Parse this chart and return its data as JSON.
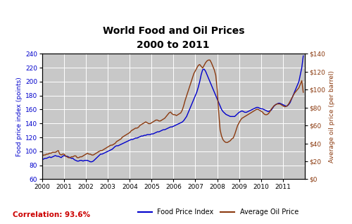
{
  "title_line1": "World Food and Oil Prices",
  "title_line2": "2000 to 2011",
  "ylabel_left": "Food price index (points)",
  "ylabel_right": "Average oil price (per barrel)",
  "ylim_left": [
    60,
    240
  ],
  "ylim_right": [
    0,
    140
  ],
  "yticks_left": [
    60,
    80,
    100,
    120,
    140,
    160,
    180,
    200,
    220,
    240
  ],
  "yticks_right": [
    0,
    20,
    40,
    60,
    80,
    100,
    120,
    140
  ],
  "ytick_right_labels": [
    "$0",
    "$20",
    "$40",
    "$60",
    "$80",
    "$100",
    "$120",
    "$140"
  ],
  "background_color": "#c8c8c8",
  "correlation_text": "Correlation: 93.6%",
  "correlation_color": "#cc0000",
  "food_color": "#0000cc",
  "oil_color": "#8B3A0F",
  "legend_food": "Food Price Index",
  "legend_oil": "Average Oil Price",
  "food_index": [
    88,
    89,
    90,
    90,
    91,
    92,
    91,
    92,
    93,
    94,
    93,
    93,
    92,
    91,
    93,
    94,
    93,
    93,
    92,
    91,
    90,
    90,
    88,
    87,
    86,
    86,
    87,
    87,
    86,
    87,
    87,
    87,
    86,
    85,
    85,
    86,
    88,
    90,
    92,
    94,
    96,
    96,
    97,
    98,
    99,
    100,
    101,
    102,
    103,
    105,
    107,
    108,
    108,
    109,
    110,
    111,
    112,
    113,
    114,
    115,
    116,
    117,
    117,
    118,
    119,
    119,
    120,
    121,
    122,
    122,
    123,
    123,
    124,
    124,
    124,
    125,
    125,
    126,
    127,
    128,
    128,
    129,
    130,
    131,
    131,
    132,
    133,
    134,
    135,
    135,
    136,
    137,
    138,
    139,
    140,
    141,
    142,
    144,
    147,
    150,
    155,
    160,
    165,
    170,
    175,
    180,
    185,
    192,
    200,
    210,
    217,
    218,
    215,
    210,
    205,
    200,
    195,
    190,
    185,
    180,
    175,
    170,
    165,
    160,
    157,
    155,
    153,
    152,
    151,
    150,
    150,
    150,
    150,
    152,
    154,
    156,
    157,
    158,
    157,
    156,
    156,
    157,
    158,
    159,
    160,
    161,
    162,
    163,
    163,
    162,
    161,
    161,
    160,
    159,
    158,
    157,
    158,
    159,
    162,
    165,
    167,
    168,
    169,
    169,
    168,
    167,
    166,
    165,
    165,
    167,
    170,
    175,
    180,
    185,
    190,
    195,
    200,
    210,
    220,
    237
  ],
  "oil_price": [
    26,
    27,
    27,
    28,
    28,
    29,
    29,
    30,
    30,
    30,
    31,
    32,
    28,
    27,
    28,
    28,
    26,
    25,
    24,
    24,
    25,
    25,
    26,
    26,
    24,
    24,
    25,
    25,
    26,
    27,
    28,
    29,
    28,
    28,
    27,
    27,
    28,
    29,
    30,
    31,
    32,
    32,
    33,
    34,
    35,
    36,
    37,
    38,
    38,
    39,
    40,
    42,
    43,
    44,
    45,
    47,
    48,
    49,
    50,
    51,
    52,
    54,
    55,
    56,
    57,
    57,
    58,
    60,
    61,
    62,
    63,
    64,
    63,
    62,
    62,
    63,
    64,
    65,
    66,
    66,
    65,
    65,
    66,
    67,
    68,
    70,
    72,
    74,
    75,
    73,
    72,
    72,
    71,
    72,
    73,
    74,
    77,
    82,
    88,
    93,
    98,
    103,
    108,
    113,
    118,
    121,
    124,
    127,
    128,
    126,
    124,
    127,
    130,
    132,
    133,
    133,
    130,
    126,
    122,
    116,
    100,
    75,
    55,
    48,
    44,
    42,
    41,
    41,
    42,
    43,
    45,
    46,
    50,
    55,
    60,
    63,
    66,
    68,
    69,
    70,
    71,
    72,
    73,
    74,
    75,
    76,
    77,
    78,
    78,
    77,
    76,
    75,
    73,
    72,
    72,
    73,
    75,
    78,
    80,
    82,
    83,
    84,
    84,
    84,
    83,
    82,
    81,
    81,
    82,
    84,
    87,
    90,
    93,
    96,
    98,
    100,
    102,
    106,
    110,
    97
  ]
}
